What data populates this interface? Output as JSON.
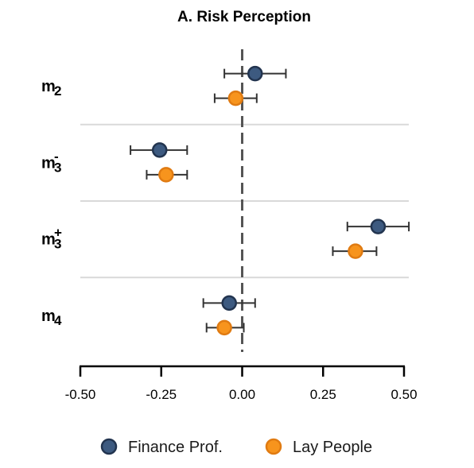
{
  "chart_data": {
    "type": "scatter",
    "title": "A. Risk Perception",
    "xlim": [
      -0.5,
      0.5
    ],
    "x_ticks": [
      -0.5,
      -0.25,
      0,
      0.25,
      0.5
    ],
    "x_tick_labels": [
      "-0.50",
      "-0.25",
      "0.00",
      "0.25",
      "0.50"
    ],
    "reference_line": 0,
    "grid": false,
    "legend_position": "bottom",
    "categories": [
      {
        "base": "m",
        "sub": "2",
        "sup": ""
      },
      {
        "base": "m",
        "sub": "3",
        "sup": "-"
      },
      {
        "base": "m",
        "sub": "3",
        "sup": "+"
      },
      {
        "base": "m",
        "sub": "4",
        "sup": ""
      }
    ],
    "series": [
      {
        "name": "Finance Prof.",
        "color": "#3d5a80",
        "stroke": "#22344f",
        "estimates": [
          0.04,
          -0.255,
          0.42,
          -0.04
        ],
        "ci_low": [
          -0.055,
          -0.345,
          0.325,
          -0.12
        ],
        "ci_high": [
          0.135,
          -0.17,
          0.515,
          0.04
        ]
      },
      {
        "name": "Lay People",
        "color": "#f7941d",
        "stroke": "#e07b12",
        "estimates": [
          -0.02,
          -0.235,
          0.35,
          -0.055
        ],
        "ci_low": [
          -0.085,
          -0.295,
          0.28,
          -0.11
        ],
        "ci_high": [
          0.045,
          -0.17,
          0.415,
          0.005
        ]
      }
    ]
  }
}
